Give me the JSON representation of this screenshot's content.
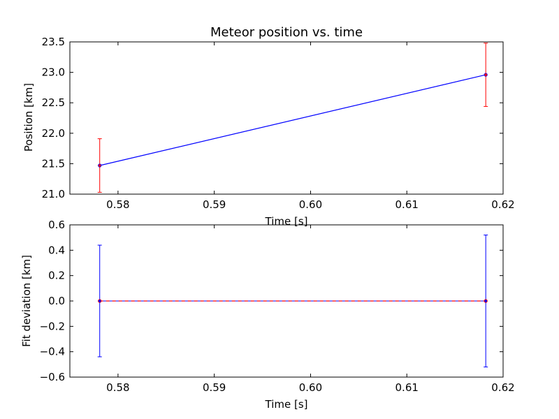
{
  "chart_data": [
    {
      "type": "line",
      "title": "Meteor position vs. time",
      "xlabel": "Time [s]",
      "ylabel": "Position [km]",
      "xlim": [
        0.575,
        0.62
      ],
      "ylim": [
        21.0,
        23.5
      ],
      "xticks": [
        "0.58",
        "0.59",
        "0.60",
        "0.61",
        "0.62"
      ],
      "yticks": [
        "21.0",
        "21.5",
        "22.0",
        "22.5",
        "23.0",
        "23.5"
      ],
      "grid": false,
      "line_color": "#0000ff",
      "point_color": "#ff0000",
      "errorbar_color": "#ff0000",
      "points": [
        {
          "x": 0.5781,
          "y": 21.47,
          "err": 0.44
        },
        {
          "x": 0.6182,
          "y": 22.96,
          "err": 0.52
        }
      ]
    },
    {
      "type": "line",
      "title": "",
      "xlabel": "Time [s]",
      "ylabel": "Fit deviation [km]",
      "xlim": [
        0.575,
        0.62
      ],
      "ylim": [
        -0.6,
        0.6
      ],
      "xticks": [
        "0.58",
        "0.59",
        "0.60",
        "0.61",
        "0.62"
      ],
      "yticks": [
        "−0.6",
        "−0.4",
        "−0.2",
        "0.0",
        "0.2",
        "0.4",
        "0.6"
      ],
      "grid": false,
      "line_color": "#ff0000",
      "point_color": "#0000ff",
      "errorbar_color": "#0000ff",
      "zero_line_color": "#0000ff",
      "points": [
        {
          "x": 0.5781,
          "y": 0.0,
          "err": 0.44
        },
        {
          "x": 0.6182,
          "y": 0.0,
          "err": 0.52
        }
      ]
    }
  ]
}
